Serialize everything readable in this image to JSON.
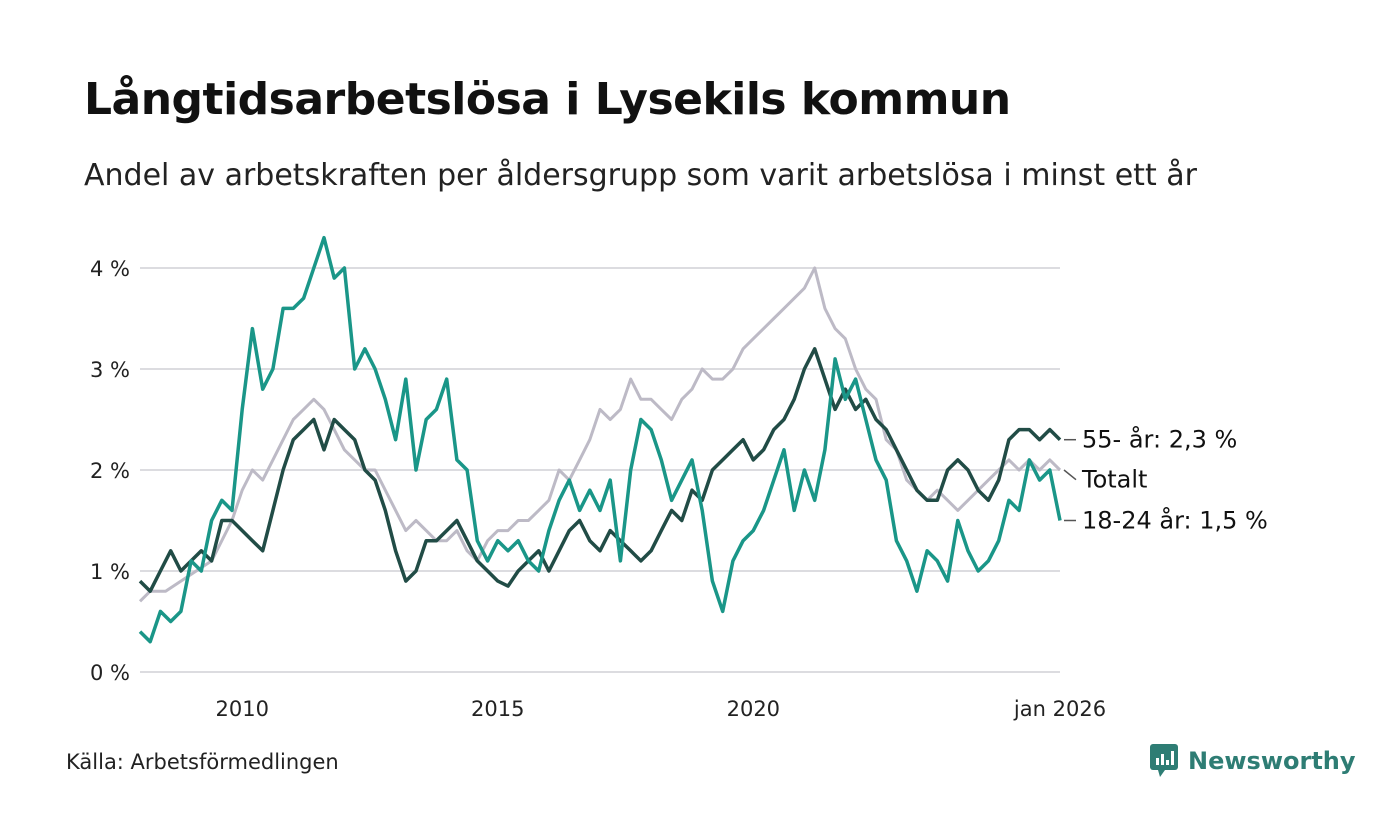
{
  "title": "Långtidsarbetslösa i Lysekils kommun",
  "subtitle": "Andel av arbetskraften per åldersgrupp som varit arbetslösa i minst ett år",
  "source": "Källa: Arbetsförmedlingen",
  "brand": {
    "name": "Newsworthy",
    "icon": "newsworthy-logo-icon",
    "color": "#2e7d74"
  },
  "chart_data": {
    "type": "line",
    "title": "Långtidsarbetslösa i Lysekils kommun",
    "xlabel": "",
    "ylabel": "",
    "xlim": [
      2008.0,
      2026.0
    ],
    "ylim": [
      0,
      4.3
    ],
    "y_ticks": [
      {
        "value": 0,
        "label": "0 %"
      },
      {
        "value": 1,
        "label": "1 %"
      },
      {
        "value": 2,
        "label": "2 %"
      },
      {
        "value": 3,
        "label": "3 %"
      },
      {
        "value": 4,
        "label": "4 %"
      }
    ],
    "x_ticks": [
      {
        "value": 2010,
        "label": "2010"
      },
      {
        "value": 2015,
        "label": "2015"
      },
      {
        "value": 2020,
        "label": "2020"
      },
      {
        "value": 2026,
        "label": "jan 2026"
      }
    ],
    "grid": true,
    "series": [
      {
        "name": "Totalt",
        "end_label": "Totalt",
        "color": "#bdbac6",
        "points": [
          [
            2008.0,
            0.7
          ],
          [
            2008.2,
            0.8
          ],
          [
            2008.5,
            0.8
          ],
          [
            2008.8,
            0.9
          ],
          [
            2009.1,
            1.0
          ],
          [
            2009.4,
            1.1
          ],
          [
            2009.6,
            1.3
          ],
          [
            2009.8,
            1.5
          ],
          [
            2010.0,
            1.8
          ],
          [
            2010.2,
            2.0
          ],
          [
            2010.4,
            1.9
          ],
          [
            2010.6,
            2.1
          ],
          [
            2010.8,
            2.3
          ],
          [
            2011.0,
            2.5
          ],
          [
            2011.2,
            2.6
          ],
          [
            2011.4,
            2.7
          ],
          [
            2011.6,
            2.6
          ],
          [
            2011.8,
            2.4
          ],
          [
            2012.0,
            2.2
          ],
          [
            2012.2,
            2.1
          ],
          [
            2012.4,
            2.0
          ],
          [
            2012.6,
            2.0
          ],
          [
            2012.8,
            1.8
          ],
          [
            2013.0,
            1.6
          ],
          [
            2013.2,
            1.4
          ],
          [
            2013.4,
            1.5
          ],
          [
            2013.6,
            1.4
          ],
          [
            2013.8,
            1.3
          ],
          [
            2014.0,
            1.3
          ],
          [
            2014.2,
            1.4
          ],
          [
            2014.4,
            1.2
          ],
          [
            2014.6,
            1.1
          ],
          [
            2014.8,
            1.3
          ],
          [
            2015.0,
            1.4
          ],
          [
            2015.2,
            1.4
          ],
          [
            2015.4,
            1.5
          ],
          [
            2015.6,
            1.5
          ],
          [
            2015.8,
            1.6
          ],
          [
            2016.0,
            1.7
          ],
          [
            2016.2,
            2.0
          ],
          [
            2016.4,
            1.9
          ],
          [
            2016.6,
            2.1
          ],
          [
            2016.8,
            2.3
          ],
          [
            2017.0,
            2.6
          ],
          [
            2017.2,
            2.5
          ],
          [
            2017.4,
            2.6
          ],
          [
            2017.6,
            2.9
          ],
          [
            2017.8,
            2.7
          ],
          [
            2018.0,
            2.7
          ],
          [
            2018.2,
            2.6
          ],
          [
            2018.4,
            2.5
          ],
          [
            2018.6,
            2.7
          ],
          [
            2018.8,
            2.8
          ],
          [
            2019.0,
            3.0
          ],
          [
            2019.2,
            2.9
          ],
          [
            2019.4,
            2.9
          ],
          [
            2019.6,
            3.0
          ],
          [
            2019.8,
            3.2
          ],
          [
            2020.0,
            3.3
          ],
          [
            2020.2,
            3.4
          ],
          [
            2020.4,
            3.5
          ],
          [
            2020.6,
            3.6
          ],
          [
            2020.8,
            3.7
          ],
          [
            2021.0,
            3.8
          ],
          [
            2021.2,
            4.0
          ],
          [
            2021.4,
            3.6
          ],
          [
            2021.6,
            3.4
          ],
          [
            2021.8,
            3.3
          ],
          [
            2022.0,
            3.0
          ],
          [
            2022.2,
            2.8
          ],
          [
            2022.4,
            2.7
          ],
          [
            2022.6,
            2.3
          ],
          [
            2022.8,
            2.2
          ],
          [
            2023.0,
            1.9
          ],
          [
            2023.2,
            1.8
          ],
          [
            2023.4,
            1.7
          ],
          [
            2023.6,
            1.8
          ],
          [
            2023.8,
            1.7
          ],
          [
            2024.0,
            1.6
          ],
          [
            2024.2,
            1.7
          ],
          [
            2024.4,
            1.8
          ],
          [
            2024.6,
            1.9
          ],
          [
            2024.8,
            2.0
          ],
          [
            2025.0,
            2.1
          ],
          [
            2025.2,
            2.0
          ],
          [
            2025.4,
            2.1
          ],
          [
            2025.6,
            2.0
          ],
          [
            2025.8,
            2.1
          ],
          [
            2026.0,
            2.0
          ]
        ]
      },
      {
        "name": "55- år",
        "end_label": "55- år: 2,3 %",
        "color": "#214c46",
        "points": [
          [
            2008.0,
            0.9
          ],
          [
            2008.2,
            0.8
          ],
          [
            2008.4,
            1.0
          ],
          [
            2008.6,
            1.2
          ],
          [
            2008.8,
            1.0
          ],
          [
            2009.0,
            1.1
          ],
          [
            2009.2,
            1.2
          ],
          [
            2009.4,
            1.1
          ],
          [
            2009.6,
            1.5
          ],
          [
            2009.8,
            1.5
          ],
          [
            2010.0,
            1.4
          ],
          [
            2010.2,
            1.3
          ],
          [
            2010.4,
            1.2
          ],
          [
            2010.6,
            1.6
          ],
          [
            2010.8,
            2.0
          ],
          [
            2011.0,
            2.3
          ],
          [
            2011.2,
            2.4
          ],
          [
            2011.4,
            2.5
          ],
          [
            2011.6,
            2.2
          ],
          [
            2011.8,
            2.5
          ],
          [
            2012.0,
            2.4
          ],
          [
            2012.2,
            2.3
          ],
          [
            2012.4,
            2.0
          ],
          [
            2012.6,
            1.9
          ],
          [
            2012.8,
            1.6
          ],
          [
            2013.0,
            1.2
          ],
          [
            2013.2,
            0.9
          ],
          [
            2013.4,
            1.0
          ],
          [
            2013.6,
            1.3
          ],
          [
            2013.8,
            1.3
          ],
          [
            2014.0,
            1.4
          ],
          [
            2014.2,
            1.5
          ],
          [
            2014.4,
            1.3
          ],
          [
            2014.6,
            1.1
          ],
          [
            2014.8,
            1.0
          ],
          [
            2015.0,
            0.9
          ],
          [
            2015.2,
            0.85
          ],
          [
            2015.4,
            1.0
          ],
          [
            2015.6,
            1.1
          ],
          [
            2015.8,
            1.2
          ],
          [
            2016.0,
            1.0
          ],
          [
            2016.2,
            1.2
          ],
          [
            2016.4,
            1.4
          ],
          [
            2016.6,
            1.5
          ],
          [
            2016.8,
            1.3
          ],
          [
            2017.0,
            1.2
          ],
          [
            2017.2,
            1.4
          ],
          [
            2017.4,
            1.3
          ],
          [
            2017.6,
            1.2
          ],
          [
            2017.8,
            1.1
          ],
          [
            2018.0,
            1.2
          ],
          [
            2018.2,
            1.4
          ],
          [
            2018.4,
            1.6
          ],
          [
            2018.6,
            1.5
          ],
          [
            2018.8,
            1.8
          ],
          [
            2019.0,
            1.7
          ],
          [
            2019.2,
            2.0
          ],
          [
            2019.4,
            2.1
          ],
          [
            2019.6,
            2.2
          ],
          [
            2019.8,
            2.3
          ],
          [
            2020.0,
            2.1
          ],
          [
            2020.2,
            2.2
          ],
          [
            2020.4,
            2.4
          ],
          [
            2020.6,
            2.5
          ],
          [
            2020.8,
            2.7
          ],
          [
            2021.0,
            3.0
          ],
          [
            2021.2,
            3.2
          ],
          [
            2021.4,
            2.9
          ],
          [
            2021.6,
            2.6
          ],
          [
            2021.8,
            2.8
          ],
          [
            2022.0,
            2.6
          ],
          [
            2022.2,
            2.7
          ],
          [
            2022.4,
            2.5
          ],
          [
            2022.6,
            2.4
          ],
          [
            2022.8,
            2.2
          ],
          [
            2023.0,
            2.0
          ],
          [
            2023.2,
            1.8
          ],
          [
            2023.4,
            1.7
          ],
          [
            2023.6,
            1.7
          ],
          [
            2023.8,
            2.0
          ],
          [
            2024.0,
            2.1
          ],
          [
            2024.2,
            2.0
          ],
          [
            2024.4,
            1.8
          ],
          [
            2024.6,
            1.7
          ],
          [
            2024.8,
            1.9
          ],
          [
            2025.0,
            2.3
          ],
          [
            2025.2,
            2.4
          ],
          [
            2025.4,
            2.4
          ],
          [
            2025.6,
            2.3
          ],
          [
            2025.8,
            2.4
          ],
          [
            2026.0,
            2.3
          ]
        ]
      },
      {
        "name": "18-24 år",
        "end_label": "18-24 år: 1,5 %",
        "color": "#1a9688",
        "points": [
          [
            2008.0,
            0.4
          ],
          [
            2008.2,
            0.3
          ],
          [
            2008.4,
            0.6
          ],
          [
            2008.6,
            0.5
          ],
          [
            2008.8,
            0.6
          ],
          [
            2009.0,
            1.1
          ],
          [
            2009.2,
            1.0
          ],
          [
            2009.4,
            1.5
          ],
          [
            2009.6,
            1.7
          ],
          [
            2009.8,
            1.6
          ],
          [
            2010.0,
            2.6
          ],
          [
            2010.2,
            3.4
          ],
          [
            2010.4,
            2.8
          ],
          [
            2010.6,
            3.0
          ],
          [
            2010.8,
            3.6
          ],
          [
            2011.0,
            3.6
          ],
          [
            2011.2,
            3.7
          ],
          [
            2011.4,
            4.0
          ],
          [
            2011.6,
            4.3
          ],
          [
            2011.8,
            3.9
          ],
          [
            2012.0,
            4.0
          ],
          [
            2012.2,
            3.0
          ],
          [
            2012.4,
            3.2
          ],
          [
            2012.6,
            3.0
          ],
          [
            2012.8,
            2.7
          ],
          [
            2013.0,
            2.3
          ],
          [
            2013.2,
            2.9
          ],
          [
            2013.4,
            2.0
          ],
          [
            2013.6,
            2.5
          ],
          [
            2013.8,
            2.6
          ],
          [
            2014.0,
            2.9
          ],
          [
            2014.2,
            2.1
          ],
          [
            2014.4,
            2.0
          ],
          [
            2014.6,
            1.3
          ],
          [
            2014.8,
            1.1
          ],
          [
            2015.0,
            1.3
          ],
          [
            2015.2,
            1.2
          ],
          [
            2015.4,
            1.3
          ],
          [
            2015.6,
            1.1
          ],
          [
            2015.8,
            1.0
          ],
          [
            2016.0,
            1.4
          ],
          [
            2016.2,
            1.7
          ],
          [
            2016.4,
            1.9
          ],
          [
            2016.6,
            1.6
          ],
          [
            2016.8,
            1.8
          ],
          [
            2017.0,
            1.6
          ],
          [
            2017.2,
            1.9
          ],
          [
            2017.4,
            1.1
          ],
          [
            2017.6,
            2.0
          ],
          [
            2017.8,
            2.5
          ],
          [
            2018.0,
            2.4
          ],
          [
            2018.2,
            2.1
          ],
          [
            2018.4,
            1.7
          ],
          [
            2018.6,
            1.9
          ],
          [
            2018.8,
            2.1
          ],
          [
            2019.0,
            1.6
          ],
          [
            2019.2,
            0.9
          ],
          [
            2019.4,
            0.6
          ],
          [
            2019.6,
            1.1
          ],
          [
            2019.8,
            1.3
          ],
          [
            2020.0,
            1.4
          ],
          [
            2020.2,
            1.6
          ],
          [
            2020.4,
            1.9
          ],
          [
            2020.6,
            2.2
          ],
          [
            2020.8,
            1.6
          ],
          [
            2021.0,
            2.0
          ],
          [
            2021.2,
            1.7
          ],
          [
            2021.4,
            2.2
          ],
          [
            2021.6,
            3.1
          ],
          [
            2021.8,
            2.7
          ],
          [
            2022.0,
            2.9
          ],
          [
            2022.2,
            2.5
          ],
          [
            2022.4,
            2.1
          ],
          [
            2022.6,
            1.9
          ],
          [
            2022.8,
            1.3
          ],
          [
            2023.0,
            1.1
          ],
          [
            2023.2,
            0.8
          ],
          [
            2023.4,
            1.2
          ],
          [
            2023.6,
            1.1
          ],
          [
            2023.8,
            0.9
          ],
          [
            2024.0,
            1.5
          ],
          [
            2024.2,
            1.2
          ],
          [
            2024.4,
            1.0
          ],
          [
            2024.6,
            1.1
          ],
          [
            2024.8,
            1.3
          ],
          [
            2025.0,
            1.7
          ],
          [
            2025.2,
            1.6
          ],
          [
            2025.4,
            2.1
          ],
          [
            2025.6,
            1.9
          ],
          [
            2025.8,
            2.0
          ],
          [
            2026.0,
            1.5
          ]
        ]
      }
    ]
  }
}
